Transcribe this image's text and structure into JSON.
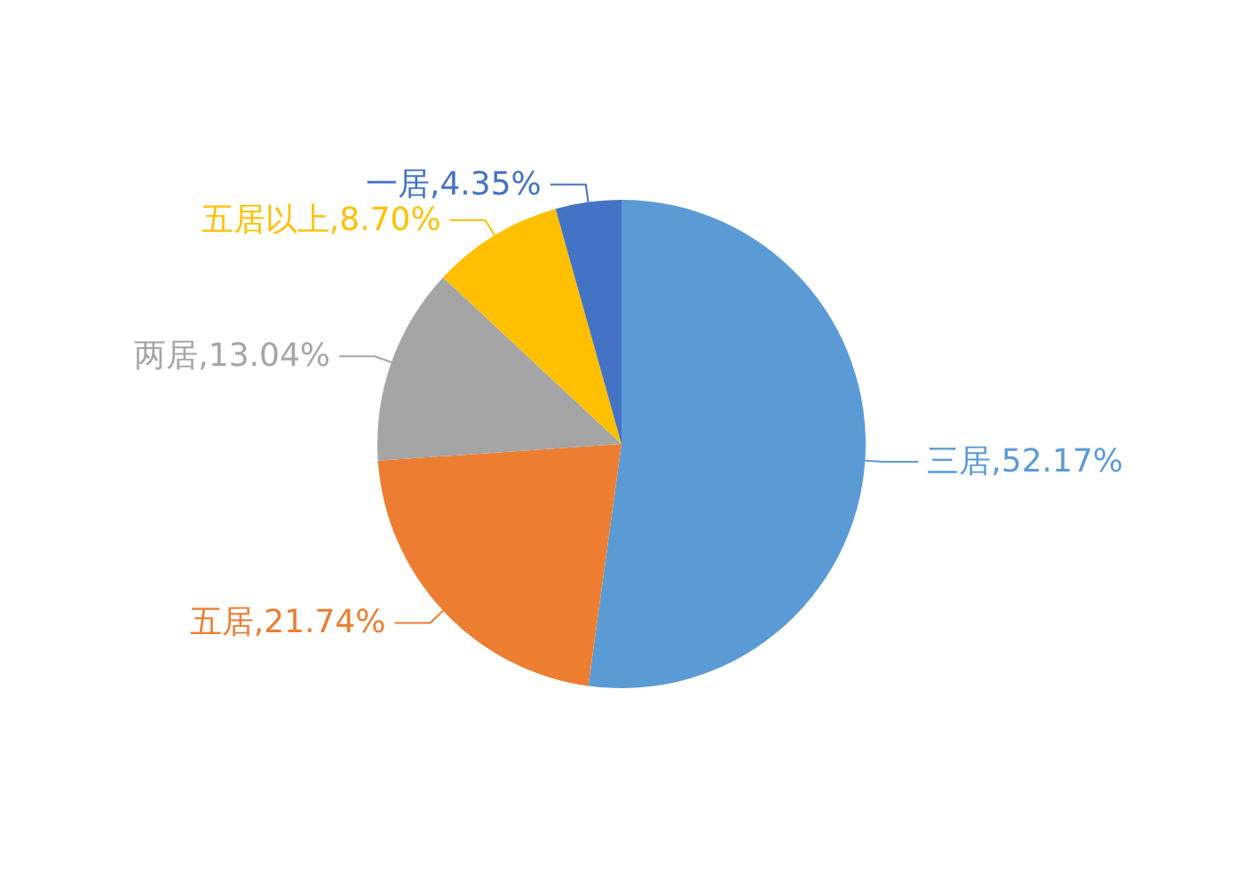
{
  "chart_data": {
    "type": "pie",
    "categories": [
      "三居",
      "五居",
      "两居",
      "五居以上",
      "一居"
    ],
    "values": [
      52.17,
      21.74,
      13.04,
      8.7,
      4.35
    ],
    "value_labels": [
      "52.17%",
      "21.74%",
      "13.04%",
      "8.70%",
      "4.35%"
    ],
    "colors": [
      "#5b9bd5",
      "#ed7d31",
      "#a5a5a5",
      "#ffc000",
      "#4472c4"
    ],
    "legend": false
  }
}
